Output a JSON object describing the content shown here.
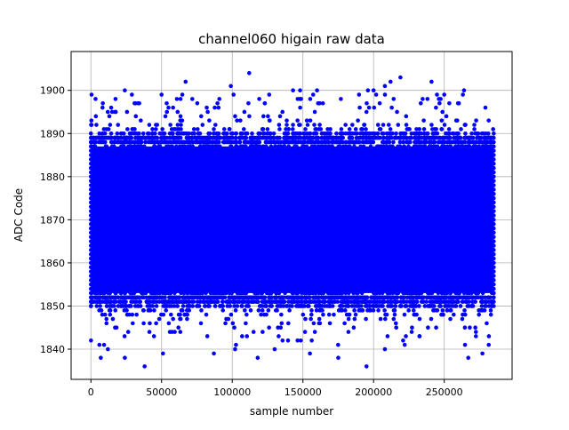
{
  "chart_data": {
    "type": "scatter",
    "title": "channel060 higain raw data",
    "xlabel": "sample number",
    "ylabel": "ADC Code",
    "xlim": [
      -14000,
      298000
    ],
    "ylim": [
      1833,
      1909
    ],
    "xticks": [
      0,
      50000,
      100000,
      150000,
      200000,
      250000
    ],
    "xtick_labels": [
      "0",
      "50000",
      "100000",
      "150000",
      "200000",
      "250000"
    ],
    "yticks": [
      1840,
      1850,
      1860,
      1870,
      1880,
      1890,
      1900
    ],
    "ytick_labels": [
      "1840",
      "1850",
      "1860",
      "1870",
      "1880",
      "1890",
      "1900"
    ],
    "grid": true,
    "legend": "none",
    "marker_color": "#0000ff",
    "series": [
      {
        "x_range": [
          0,
          285000
        ],
        "dense_band": [
          1850,
          1890
        ],
        "core_band": [
          1853,
          1887
        ],
        "outliers": [
          {
            "x": 24000,
            "y": 1900
          },
          {
            "x": 50000,
            "y": 1899
          },
          {
            "x": 67000,
            "y": 1902
          },
          {
            "x": 99000,
            "y": 1901
          },
          {
            "x": 112000,
            "y": 1904
          },
          {
            "x": 143000,
            "y": 1900
          },
          {
            "x": 148000,
            "y": 1900
          },
          {
            "x": 160000,
            "y": 1900
          },
          {
            "x": 196000,
            "y": 1900
          },
          {
            "x": 200000,
            "y": 1900
          },
          {
            "x": 208000,
            "y": 1901
          },
          {
            "x": 212000,
            "y": 1902
          },
          {
            "x": 219000,
            "y": 1903
          },
          {
            "x": 241000,
            "y": 1902
          },
          {
            "x": 264000,
            "y": 1900
          },
          {
            "x": 38000,
            "y": 1836
          },
          {
            "x": 195000,
            "y": 1836
          },
          {
            "x": 7000,
            "y": 1838
          },
          {
            "x": 24000,
            "y": 1838
          },
          {
            "x": 118000,
            "y": 1838
          },
          {
            "x": 175000,
            "y": 1838
          },
          {
            "x": 267000,
            "y": 1838
          },
          {
            "x": 6000,
            "y": 1841
          },
          {
            "x": 12000,
            "y": 1840
          },
          {
            "x": 51000,
            "y": 1839
          },
          {
            "x": 87000,
            "y": 1839
          },
          {
            "x": 102000,
            "y": 1840
          },
          {
            "x": 130000,
            "y": 1840
          },
          {
            "x": 155000,
            "y": 1839
          },
          {
            "x": 208000,
            "y": 1840
          },
          {
            "x": 222000,
            "y": 1841
          },
          {
            "x": 277000,
            "y": 1839
          }
        ]
      }
    ]
  }
}
